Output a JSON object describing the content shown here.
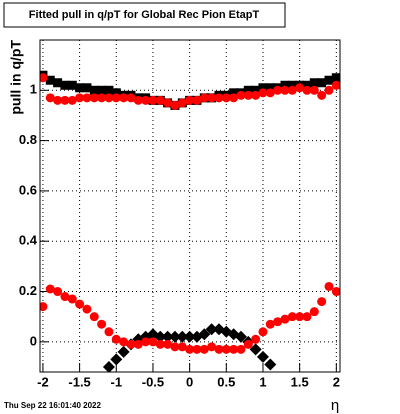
{
  "chart_data": {
    "type": "scatter",
    "title": "Fitted pull in q/pT for Global Rec Pion EtapT",
    "y_label": "pull in q/pT",
    "x_label": "η",
    "timestamp": "Thu Sep 22 16:01:40 2022",
    "x": [
      -2,
      -1.9,
      -1.8,
      -1.7,
      -1.6,
      -1.5,
      -1.4,
      -1.3,
      -1.2,
      -1.1,
      -1,
      -0.9,
      -0.8,
      -0.7,
      -0.6,
      -0.5,
      -0.4,
      -0.3,
      -0.2,
      -0.1,
      0,
      0.1,
      0.2,
      0.3,
      0.4,
      0.5,
      0.6,
      0.7,
      0.8,
      0.9,
      1,
      1.1,
      1.2,
      1.3,
      1.4,
      1.5,
      1.6,
      1.7,
      1.8,
      1.9,
      2
    ],
    "series": [
      {
        "color": "#000000",
        "marker": "square",
        "values": [
          1.06,
          1.04,
          1.03,
          1.02,
          1.02,
          1.01,
          1.01,
          1.0,
          1.0,
          1.0,
          0.99,
          0.98,
          0.98,
          0.97,
          0.97,
          0.96,
          0.96,
          0.95,
          0.94,
          0.95,
          0.96,
          0.96,
          0.97,
          0.97,
          0.98,
          0.98,
          0.99,
          0.99,
          1.0,
          1.0,
          1.01,
          1.01,
          1.01,
          1.02,
          1.02,
          1.02,
          1.02,
          1.03,
          1.03,
          1.04,
          1.05
        ]
      },
      {
        "color": "#ff0000",
        "marker": "circle",
        "values": [
          1.05,
          0.97,
          0.96,
          0.96,
          0.96,
          0.97,
          0.97,
          0.97,
          0.97,
          0.97,
          0.97,
          0.97,
          0.97,
          0.96,
          0.96,
          0.96,
          0.96,
          0.95,
          0.94,
          0.95,
          0.96,
          0.96,
          0.97,
          0.97,
          0.97,
          0.97,
          0.97,
          0.98,
          0.98,
          0.98,
          0.99,
          0.99,
          1.0,
          1.0,
          1.0,
          1.01,
          1.0,
          1.0,
          0.98,
          1.0,
          1.02
        ]
      },
      {
        "color": "#000000",
        "marker": "diamond",
        "values": [
          null,
          null,
          null,
          null,
          null,
          null,
          null,
          null,
          null,
          -0.1,
          -0.07,
          -0.04,
          -0.01,
          0.01,
          0.02,
          0.03,
          0.02,
          0.02,
          0.02,
          0.02,
          0.02,
          0.02,
          0.03,
          0.05,
          0.05,
          0.04,
          0.03,
          0.02,
          0.0,
          -0.03,
          -0.06,
          -0.09,
          null,
          null,
          null,
          null,
          null,
          null,
          null,
          null,
          null
        ]
      },
      {
        "color": "#ff0000",
        "marker": "circle",
        "values": [
          0.14,
          0.21,
          0.2,
          0.18,
          0.17,
          0.15,
          0.13,
          0.1,
          0.07,
          0.04,
          0.01,
          0.0,
          -0.01,
          -0.01,
          0.0,
          0.0,
          -0.01,
          -0.01,
          -0.02,
          -0.02,
          -0.03,
          -0.03,
          -0.03,
          -0.02,
          -0.03,
          -0.03,
          -0.03,
          -0.03,
          -0.01,
          0.01,
          0.04,
          0.07,
          0.08,
          0.09,
          0.1,
          0.1,
          0.1,
          0.12,
          0.16,
          0.22,
          0.2
        ]
      }
    ],
    "xlim": [
      -2.04,
      2.05
    ],
    "xticks": [
      -2,
      -1.5,
      -1,
      -0.5,
      0,
      0.5,
      1,
      1.5,
      2
    ],
    "ylim": [
      -0.12,
      1.2
    ],
    "yticks": [
      0,
      0.2,
      0.4,
      0.6,
      0.8,
      1
    ],
    "grid": true
  }
}
